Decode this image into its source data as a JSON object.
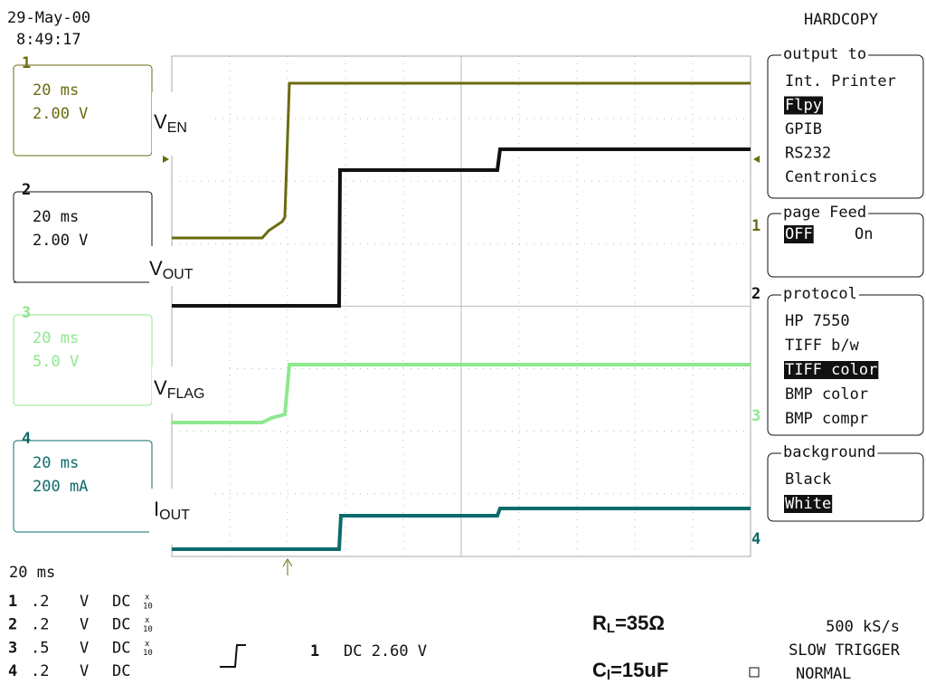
{
  "header": {
    "date": "29-May-00",
    "time": "8:49:17"
  },
  "channels": [
    {
      "number": "1",
      "timebase": "20 ms",
      "scale": "2.00 V"
    },
    {
      "number": "2",
      "timebase": "20 ms",
      "scale": "2.00 V"
    },
    {
      "number": "3",
      "timebase": "20 ms",
      "scale": "5.0 V"
    },
    {
      "number": "4",
      "timebase": "20 ms",
      "scale": "200 mA"
    }
  ],
  "trace_labels": [
    {
      "main": "V",
      "sub": "EN"
    },
    {
      "main": "V",
      "sub": "OUT"
    },
    {
      "main": "V",
      "sub": "FLAG"
    },
    {
      "main": "I",
      "sub": "OUT"
    }
  ],
  "right_markers": [
    "1",
    "2",
    "3",
    "4"
  ],
  "menu": {
    "title": "HARDCOPY",
    "groups": [
      {
        "title": "output to",
        "items": [
          {
            "label": "Int. Printer",
            "selected": false
          },
          {
            "label": "Flpy",
            "selected": true
          },
          {
            "label": "GPIB",
            "selected": false
          },
          {
            "label": "RS232",
            "selected": false
          },
          {
            "label": "Centronics",
            "selected": false
          }
        ]
      },
      {
        "title": "page Feed",
        "inline": true,
        "items": [
          {
            "label": "OFF",
            "selected": true
          },
          {
            "label": "On",
            "selected": false
          }
        ]
      },
      {
        "title": "protocol",
        "items": [
          {
            "label": "HP 7550",
            "selected": false
          },
          {
            "label": "TIFF b/w",
            "selected": false
          },
          {
            "label": "TIFF color",
            "selected": true
          },
          {
            "label": "BMP color",
            "selected": false
          },
          {
            "label": "BMP compr",
            "selected": false
          }
        ]
      },
      {
        "title": "background",
        "items": [
          {
            "label": "Black",
            "selected": false
          },
          {
            "label": "White",
            "selected": true
          }
        ]
      }
    ]
  },
  "footer": {
    "timebase": "20 ms",
    "channel_settings": [
      {
        "number": "1",
        "scale": ".2",
        "unit": "V",
        "coupling": "DC",
        "probe": {
          "symbol": "x",
          "factor": "10"
        }
      },
      {
        "number": "2",
        "scale": ".2",
        "unit": "V",
        "coupling": "DC",
        "probe": {
          "symbol": "x",
          "factor": "10"
        }
      },
      {
        "number": "3",
        "scale": ".5",
        "unit": "V",
        "coupling": "DC",
        "probe": {
          "symbol": "x",
          "factor": "10"
        }
      },
      {
        "number": "4",
        "scale": ".2",
        "unit": "V",
        "coupling": "DC"
      }
    ],
    "trigger_channel": "1",
    "trigger_setting": "DC 2.60 V",
    "sample_rate": "500 kS/s",
    "trigger_mode": "SLOW TRIGGER",
    "trigger_state": "NORMAL"
  },
  "annotations": {
    "resistance": {
      "main": "R",
      "sub": "L",
      "rest": "=35Ω"
    },
    "capacitance": {
      "main": "C",
      "sub": "l",
      "rest": "=15uF"
    }
  }
}
